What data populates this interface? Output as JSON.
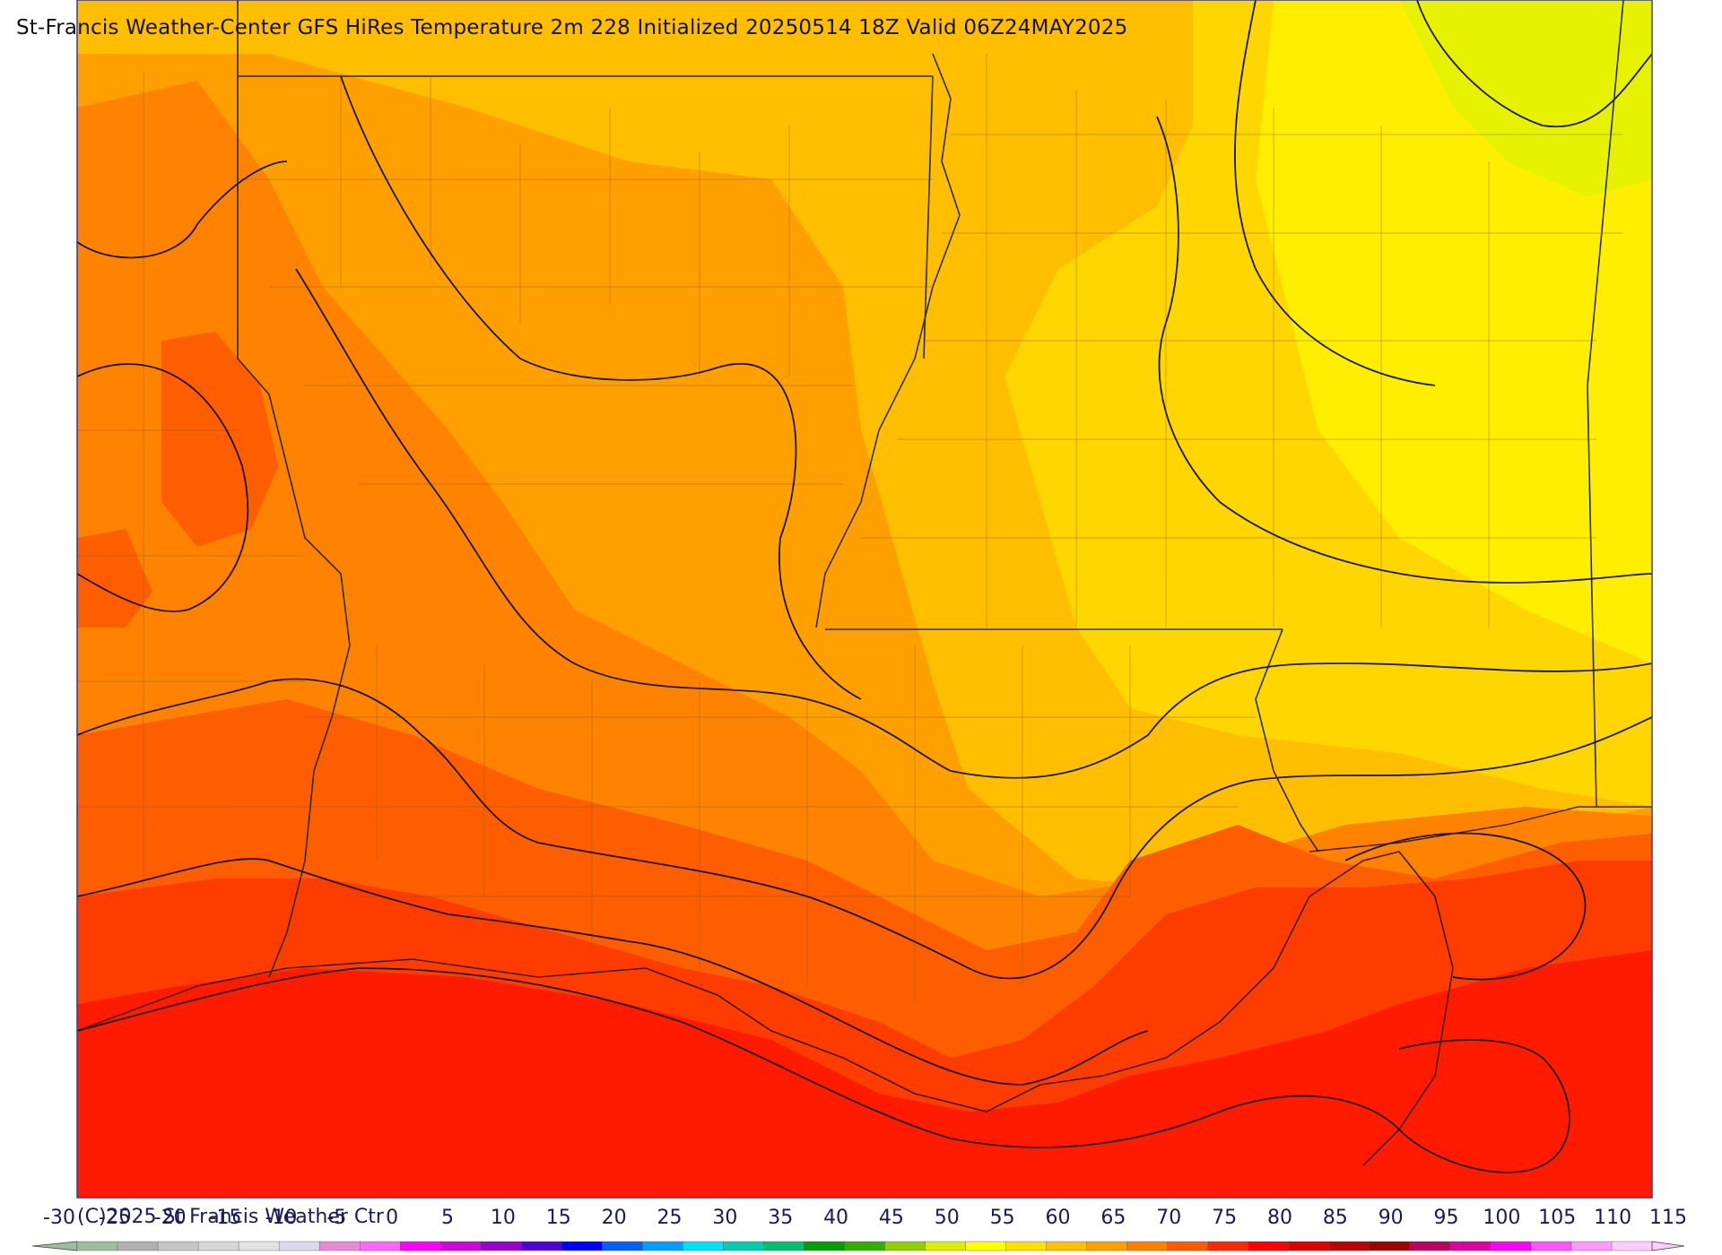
{
  "header": {
    "title": "St-Francis Weather-Center GFS HiRes Temperature 2m  228 Initialized 20250514 18Z Valid 06Z24MAY2025"
  },
  "footer": {
    "copyright": "(C)2025 St Francis Weather Ctr"
  },
  "colorbar": {
    "tick_labels": [
      "-30",
      "-25",
      "-20",
      "-15",
      "-10",
      "-5",
      "0",
      "5",
      "10",
      "15",
      "20",
      "25",
      "30",
      "35",
      "40",
      "45",
      "50",
      "55",
      "60",
      "65",
      "70",
      "75",
      "80",
      "85",
      "90",
      "95",
      "100",
      "105",
      "110",
      "115"
    ],
    "colors": [
      "#9bbf9b",
      "#b0b0b0",
      "#c6c6c6",
      "#d6d6d6",
      "#e2e2e2",
      "#d8d8f0",
      "#e68ad8",
      "#ff66ff",
      "#ff00ff",
      "#d000e0",
      "#9a00d0",
      "#5000d8",
      "#0000ff",
      "#0060ff",
      "#00a0ff",
      "#00e0ff",
      "#00d0b0",
      "#00c070",
      "#00a000",
      "#30b000",
      "#90d000",
      "#d8f000",
      "#ffff00",
      "#ffe000",
      "#ffc000",
      "#ffa000",
      "#ff8000",
      "#ff5a00",
      "#ff2800",
      "#ff0000",
      "#e00000",
      "#c00000",
      "#a00000",
      "#c00060",
      "#e000a0",
      "#ff00ff",
      "#ff55ff",
      "#ff99ff",
      "#ffccff"
    ]
  },
  "map": {
    "region": "Louisiana, Mississippi, East Texas, South Arkansas",
    "field": "2m temperature",
    "fill_colors": {
      "gulf": "#ff1a00",
      "coast": "#ff3c00",
      "south": "#ff5e00",
      "central_west": "#ff8200",
      "central": "#ffa000",
      "north": "#ffbf00",
      "northeast": "#ffd600",
      "east": "#ffee00",
      "far_ne": "#e6f200"
    }
  }
}
